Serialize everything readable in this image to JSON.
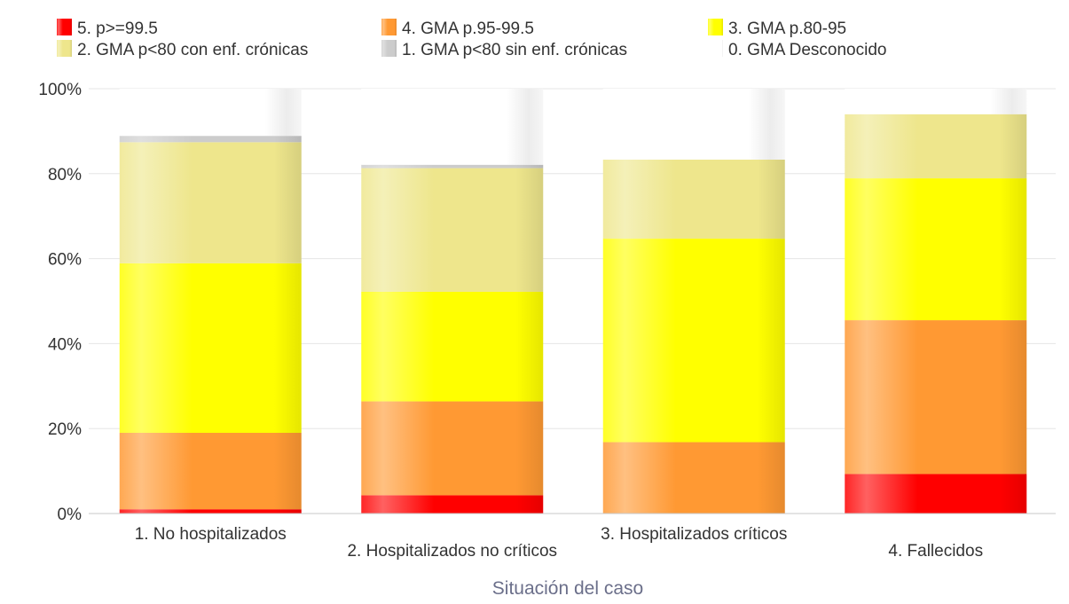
{
  "chart_data": {
    "type": "bar",
    "stacked": true,
    "xlabel": "Situación del caso",
    "ylabel": "",
    "ylim": [
      0,
      100
    ],
    "y_ticks": [
      "0%",
      "20%",
      "40%",
      "60%",
      "80%",
      "100%"
    ],
    "grid": true,
    "legend_position": "top",
    "categories": [
      "1. No hospitalizados",
      "2. Hospitalizados no críticos",
      "3. Hospitalizados críticos",
      "4. Fallecidos"
    ],
    "series": [
      {
        "name": "5. p>=99.5",
        "color": "#ff0000",
        "values": [
          1.0,
          4.3,
          0.0,
          9.3
        ]
      },
      {
        "name": "4. GMA p.95-99.5",
        "color": "#ff9933",
        "values": [
          18.0,
          22.1,
          16.8,
          36.2
        ]
      },
      {
        "name": "3. GMA p.80-95",
        "color": "#ffff00",
        "values": [
          39.9,
          25.8,
          47.9,
          33.4
        ]
      },
      {
        "name": "2. GMA p<80 con enf. crónicas",
        "color": "#eee68c",
        "values": [
          28.5,
          29.1,
          18.6,
          15.1
        ]
      },
      {
        "name": "1. GMA p<80 sin enf. crónicas",
        "color": "#cccccc",
        "values": [
          1.5,
          0.8,
          0.0,
          0.0
        ]
      },
      {
        "name": "0. GMA Desconocido",
        "color": "#ffffff",
        "values": [
          11.1,
          17.9,
          16.7,
          6.0
        ]
      }
    ]
  }
}
